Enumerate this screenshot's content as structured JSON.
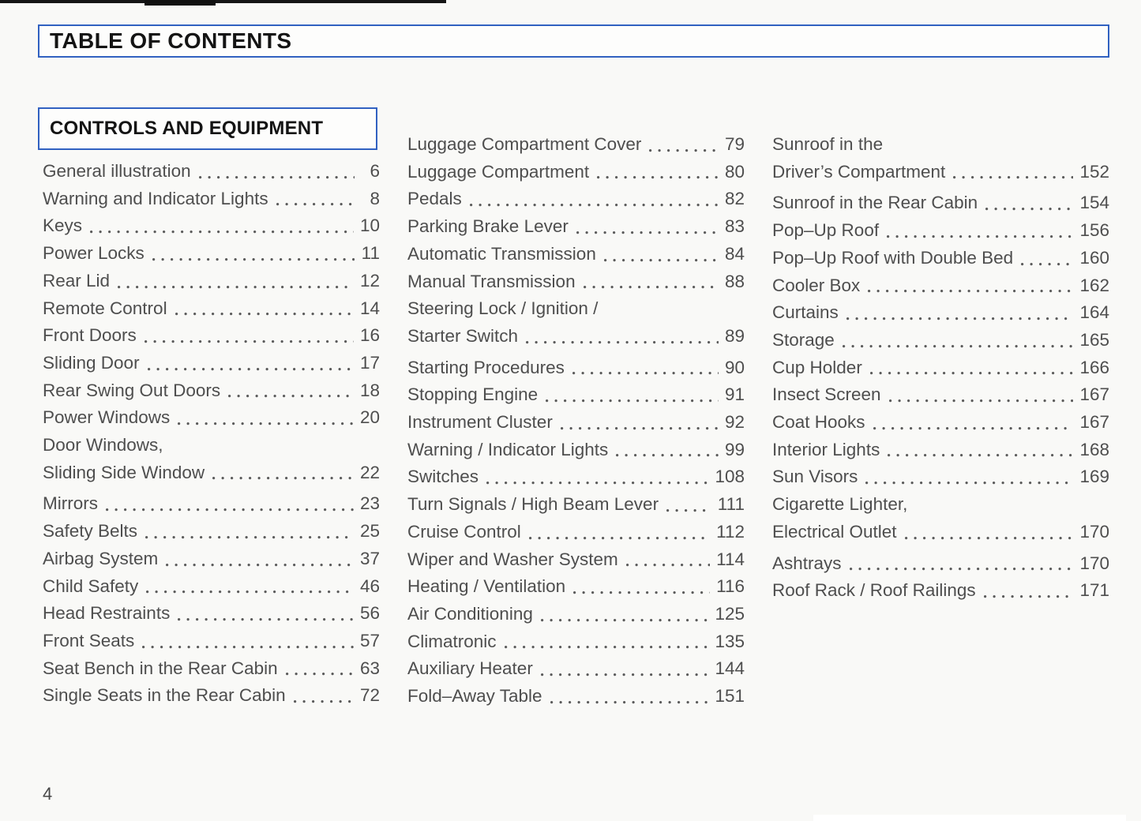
{
  "page": {
    "title": "TABLE OF CONTENTS",
    "section_title": "CONTROLS AND EQUIPMENT",
    "page_number": "4",
    "accent_color": "#3161c1",
    "text_color": "#4e4e4e"
  },
  "toc": {
    "columns": [
      {
        "entries": [
          {
            "label": "General illustration",
            "page": "6"
          },
          {
            "label": "Warning and Indicator Lights",
            "page": "8"
          },
          {
            "label": "Keys",
            "page": "10"
          },
          {
            "label": "Power Locks",
            "page": "11"
          },
          {
            "label": "Rear Lid",
            "page": "12"
          },
          {
            "label": "Remote Control",
            "page": "14"
          },
          {
            "label": "Front Doors",
            "page": "16"
          },
          {
            "label": "Sliding Door",
            "page": "17"
          },
          {
            "label": "Rear Swing Out Doors",
            "page": "18"
          },
          {
            "label": "Power Windows",
            "page": "20"
          },
          {
            "pre": "Door Windows,",
            "label": "Sliding Side Window",
            "page": "22"
          },
          {
            "label": "Mirrors",
            "page": "23"
          },
          {
            "label": "Safety Belts",
            "page": "25"
          },
          {
            "label": "Airbag System",
            "page": "37"
          },
          {
            "label": "Child Safety",
            "page": "46"
          },
          {
            "label": "Head Restraints",
            "page": "56"
          },
          {
            "label": "Front Seats",
            "page": "57"
          },
          {
            "label": "Seat Bench in the Rear Cabin",
            "page": "63"
          },
          {
            "label": "Single Seats in the Rear Cabin",
            "page": "72"
          }
        ]
      },
      {
        "entries": [
          {
            "label": "Luggage Compartment Cover",
            "page": "79"
          },
          {
            "label": "Luggage Compartment",
            "page": "80"
          },
          {
            "label": "Pedals",
            "page": "82"
          },
          {
            "label": "Parking Brake Lever",
            "page": "83"
          },
          {
            "label": "Automatic Transmission",
            "page": "84"
          },
          {
            "label": "Manual Transmission",
            "page": "88"
          },
          {
            "pre": "Steering Lock / Ignition /",
            "label": "Starter Switch",
            "page": "89"
          },
          {
            "label": "Starting Procedures",
            "page": "90"
          },
          {
            "label": "Stopping Engine",
            "page": "91"
          },
          {
            "label": "Instrument Cluster",
            "page": "92"
          },
          {
            "label": "Warning / Indicator Lights",
            "page": "99"
          },
          {
            "label": "Switches",
            "page": "108"
          },
          {
            "label": "Turn Signals / High Beam Lever",
            "page": "111"
          },
          {
            "label": "Cruise Control",
            "page": "112"
          },
          {
            "label": "Wiper and Washer System",
            "page": "114"
          },
          {
            "label": "Heating / Ventilation",
            "page": "116"
          },
          {
            "label": "Air Conditioning",
            "page": "125"
          },
          {
            "label": "Climatronic",
            "page": "135"
          },
          {
            "label": "Auxiliary Heater",
            "page": "144"
          },
          {
            "label": "Fold–Away Table",
            "page": "151"
          }
        ]
      },
      {
        "entries": [
          {
            "pre": "Sunroof in the",
            "label": "Driver’s Compartment",
            "page": "152"
          },
          {
            "label": "Sunroof in the Rear Cabin",
            "page": "154"
          },
          {
            "label": "Pop–Up Roof",
            "page": "156"
          },
          {
            "label": "Pop–Up Roof with Double Bed",
            "page": "160"
          },
          {
            "label": "Cooler Box",
            "page": "162"
          },
          {
            "label": "Curtains",
            "page": "164"
          },
          {
            "label": "Storage",
            "page": "165"
          },
          {
            "label": "Cup Holder",
            "page": "166"
          },
          {
            "label": "Insect Screen",
            "page": "167"
          },
          {
            "label": "Coat Hooks",
            "page": "167"
          },
          {
            "label": "Interior Lights",
            "page": "168"
          },
          {
            "label": "Sun Visors",
            "page": "169"
          },
          {
            "pre": "Cigarette Lighter,",
            "label": "Electrical Outlet",
            "page": "170"
          },
          {
            "label": "Ashtrays",
            "page": "170"
          },
          {
            "label": "Roof Rack / Roof Railings",
            "page": "171"
          }
        ]
      }
    ]
  }
}
